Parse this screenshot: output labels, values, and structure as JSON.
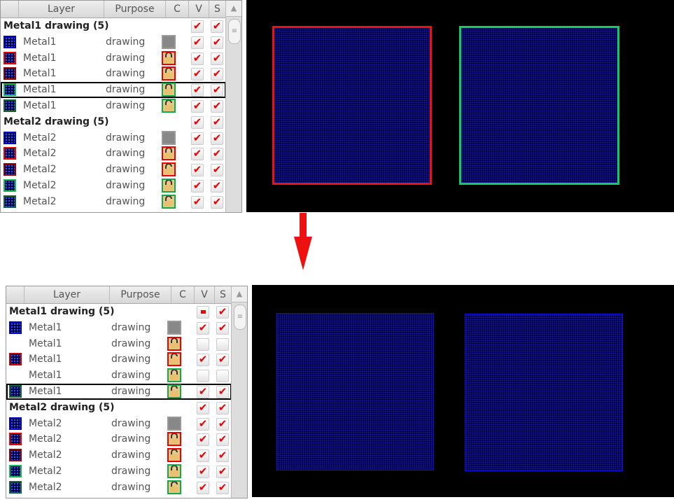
{
  "columns": {
    "layer": "Layer",
    "purpose": "Purpose",
    "c": "C",
    "v": "V",
    "s": "S"
  },
  "before": {
    "rows": [
      {
        "type": "group",
        "name": "Metal1 drawing (5)",
        "v": "checked",
        "s": "checked"
      },
      {
        "name": "Metal1",
        "purpose": "drawing",
        "swatch": "#0000cc",
        "c": "gray",
        "v": "checked",
        "s": "checked"
      },
      {
        "name": "Metal1",
        "purpose": "drawing",
        "swatch": "#ee0000",
        "c": "lock-red",
        "v": "checked",
        "s": "checked"
      },
      {
        "name": "Metal1",
        "purpose": "drawing",
        "swatch": "#990000",
        "c": "unlock-red",
        "v": "checked",
        "s": "checked"
      },
      {
        "name": "Metal1",
        "purpose": "drawing",
        "swatch": "#11bb55",
        "c": "lock-green",
        "v": "checked",
        "s": "checked",
        "selected": true
      },
      {
        "name": "Metal1",
        "purpose": "drawing",
        "swatch": "#116633",
        "c": "unlock-green",
        "v": "checked",
        "s": "checked"
      },
      {
        "type": "group",
        "name": "Metal2 drawing (5)",
        "v": "checked",
        "s": "checked"
      },
      {
        "name": "Metal2",
        "purpose": "drawing",
        "swatch": "#0000cc",
        "c": "gray",
        "v": "checked",
        "s": "checked"
      },
      {
        "name": "Metal2",
        "purpose": "drawing",
        "swatch": "#ee0000",
        "c": "lock-red",
        "v": "checked",
        "s": "checked"
      },
      {
        "name": "Metal2",
        "purpose": "drawing",
        "swatch": "#990000",
        "c": "unlock-red",
        "v": "checked",
        "s": "checked"
      },
      {
        "name": "Metal2",
        "purpose": "drawing",
        "swatch": "#11bb55",
        "c": "lock-green",
        "v": "checked",
        "s": "checked"
      },
      {
        "name": "Metal2",
        "purpose": "drawing",
        "swatch": "#116633",
        "c": "unlock-green",
        "v": "checked",
        "s": "checked"
      }
    ],
    "shapes": [
      {
        "color": "#ee1111"
      },
      {
        "color": "#11cc66"
      }
    ]
  },
  "after": {
    "rows": [
      {
        "type": "group",
        "name": "Metal1 drawing (5)",
        "v": "partial",
        "s": "checked"
      },
      {
        "name": "Metal1",
        "purpose": "drawing",
        "swatch": "#0000cc",
        "c": "gray",
        "v": "checked",
        "s": "checked"
      },
      {
        "name": "Metal1",
        "purpose": "drawing",
        "swatch": "",
        "c": "lock-red",
        "v": "unchecked",
        "s": "unchecked"
      },
      {
        "name": "Metal1",
        "purpose": "drawing",
        "swatch": "#cc0000",
        "c": "unlock-red",
        "v": "checked",
        "s": "checked"
      },
      {
        "name": "Metal1",
        "purpose": "drawing",
        "swatch": "",
        "c": "lock-green",
        "v": "unchecked",
        "s": "unchecked"
      },
      {
        "name": "Metal1",
        "purpose": "drawing",
        "swatch": "#116633",
        "c": "unlock-green",
        "v": "checked",
        "s": "checked",
        "selected": true
      },
      {
        "type": "group",
        "name": "Metal2 drawing (5)",
        "v": "checked",
        "s": "checked"
      },
      {
        "name": "Metal2",
        "purpose": "drawing",
        "swatch": "#0000cc",
        "c": "gray",
        "v": "checked",
        "s": "checked"
      },
      {
        "name": "Metal2",
        "purpose": "drawing",
        "swatch": "#ee0000",
        "c": "lock-red",
        "v": "checked",
        "s": "checked"
      },
      {
        "name": "Metal2",
        "purpose": "drawing",
        "swatch": "#990000",
        "c": "unlock-red",
        "v": "checked",
        "s": "checked"
      },
      {
        "name": "Metal2",
        "purpose": "drawing",
        "swatch": "#11bb55",
        "c": "lock-green",
        "v": "checked",
        "s": "checked"
      },
      {
        "name": "Metal2",
        "purpose": "drawing",
        "swatch": "#116633",
        "c": "unlock-green",
        "v": "checked",
        "s": "checked"
      }
    ],
    "shapes": [
      {
        "color": "#1111dd"
      },
      {
        "color": "#1111dd"
      }
    ]
  },
  "arrow_color": "#ee1111"
}
